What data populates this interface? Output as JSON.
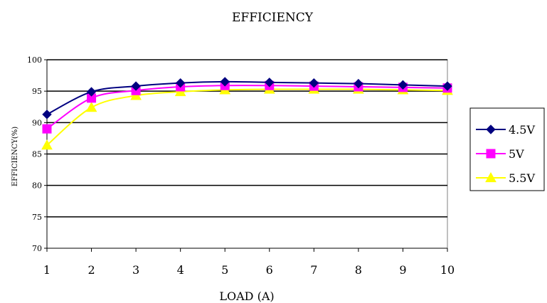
{
  "chart_data": {
    "type": "line",
    "title": "EFFICIENCY",
    "xlabel": "LOAD (A)",
    "ylabel": "EFFICIENCY(%)",
    "x": [
      1,
      2,
      3,
      4,
      5,
      6,
      7,
      8,
      9,
      10
    ],
    "xlim": [
      1,
      10
    ],
    "ylim": [
      70,
      100
    ],
    "yticks": [
      70,
      75,
      80,
      85,
      90,
      95,
      100
    ],
    "grid": true,
    "legend_position": "right",
    "series": [
      {
        "name": "4.5V",
        "marker": "diamond",
        "color": "#000080",
        "values": [
          91.3,
          94.9,
          95.8,
          96.3,
          96.5,
          96.4,
          96.3,
          96.2,
          96.0,
          95.8
        ]
      },
      {
        "name": "5V",
        "marker": "square",
        "color": "#ff00ff",
        "values": [
          89.0,
          93.9,
          95.1,
          95.7,
          95.9,
          95.9,
          95.8,
          95.7,
          95.6,
          95.5
        ]
      },
      {
        "name": "5.5V",
        "marker": "triangle",
        "color": "#ffff00",
        "values": [
          86.4,
          92.4,
          94.3,
          94.9,
          95.2,
          95.3,
          95.3,
          95.3,
          95.2,
          95.1
        ]
      }
    ]
  }
}
